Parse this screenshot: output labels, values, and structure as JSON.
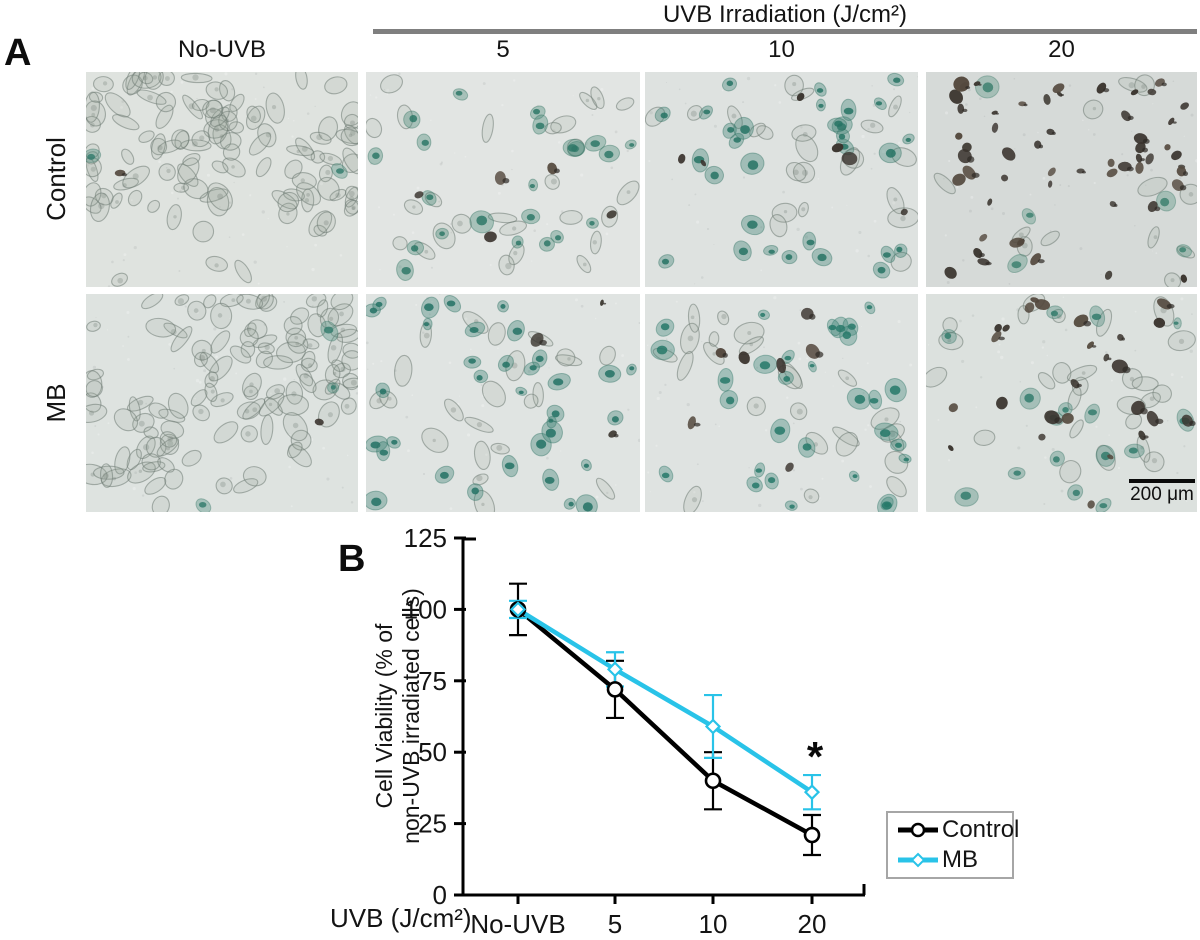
{
  "figure": {
    "panel_a_letter": "A",
    "panel_b_letter": "B"
  },
  "panel_a": {
    "header": {
      "title": "UVB Irradiation (J/cm²)",
      "bar_color": "#7f7f7f"
    },
    "column_labels": [
      "No-UVB",
      "5",
      "10",
      "20"
    ],
    "row_labels": [
      "Control",
      "MB"
    ],
    "scale_bar": {
      "label": "200 μm"
    },
    "micrographs": [
      {
        "id": "control-no-uvb",
        "row": "Control",
        "dose": "No-UVB",
        "bg": "#dde2de",
        "clustered": true,
        "stain": "#4f8d7e",
        "cells": {
          "outline": 112,
          "stained": 2,
          "dark": 1
        },
        "seed": 11
      },
      {
        "id": "control-5",
        "row": "Control",
        "dose": "5",
        "bg": "#e0e4e2",
        "clustered": false,
        "stain": "#478776",
        "cells": {
          "outline": 26,
          "stained": 22,
          "dark": 5
        },
        "seed": 22
      },
      {
        "id": "control-10",
        "row": "Control",
        "dose": "10",
        "bg": "#dce0de",
        "clustered": false,
        "stain": "#3f8273",
        "cells": {
          "outline": 22,
          "stained": 30,
          "dark": 6
        },
        "seed": 33
      },
      {
        "id": "control-20",
        "row": "Control",
        "dose": "20",
        "bg": "#d3d7d5",
        "clustered": false,
        "stain": "#56907f",
        "cells": {
          "outline": 12,
          "stained": 5,
          "dark": 55
        },
        "seed": 44
      },
      {
        "id": "mb-no-uvb",
        "row": "MB",
        "dose": "No-UVB",
        "bg": "#dde2df",
        "clustered": true,
        "stain": "#4f8d7e",
        "cells": {
          "outline": 116,
          "stained": 3,
          "dark": 1
        },
        "seed": 55
      },
      {
        "id": "mb-5",
        "row": "MB",
        "dose": "5",
        "bg": "#dfe3e1",
        "clustered": false,
        "stain": "#3c8173",
        "cells": {
          "outline": 22,
          "stained": 34,
          "dark": 3
        },
        "seed": 66
      },
      {
        "id": "mb-10",
        "row": "MB",
        "dose": "10",
        "bg": "#dee2e0",
        "clustered": false,
        "stain": "#3f8778",
        "cells": {
          "outline": 24,
          "stained": 30,
          "dark": 7
        },
        "seed": 77
      },
      {
        "id": "mb-20",
        "row": "MB",
        "dose": "20",
        "bg": "#dadfdc",
        "clustered": false,
        "stain": "#4b8a7b",
        "cells": {
          "outline": 26,
          "stained": 16,
          "dark": 26
        },
        "seed": 88
      }
    ]
  },
  "chart_data": {
    "type": "line",
    "title": "",
    "categories": [
      "No-UVB",
      "5",
      "10",
      "20"
    ],
    "series": [
      {
        "name": "Control",
        "color": "#000000",
        "marker": "circle",
        "values": [
          100,
          72,
          40,
          21
        ],
        "errors": [
          9,
          10,
          10,
          7
        ]
      },
      {
        "name": "MB",
        "color": "#29c3e8",
        "marker": "diamond",
        "values": [
          100,
          79,
          59,
          36
        ],
        "errors": [
          3,
          6,
          11,
          6
        ]
      }
    ],
    "ylabel_line1": "Cell Viability (% of",
    "ylabel_line2": "non-UVB irradiated cells)",
    "xlabel": "UVB (J/cm²)",
    "ylim": [
      0,
      125
    ],
    "yticks": [
      0,
      25,
      50,
      75,
      100,
      125
    ],
    "grid": false,
    "legend_position": "right-bottom",
    "annotation": {
      "text": "*",
      "category_index": 3,
      "series": "MB",
      "meaning": "significant"
    }
  }
}
